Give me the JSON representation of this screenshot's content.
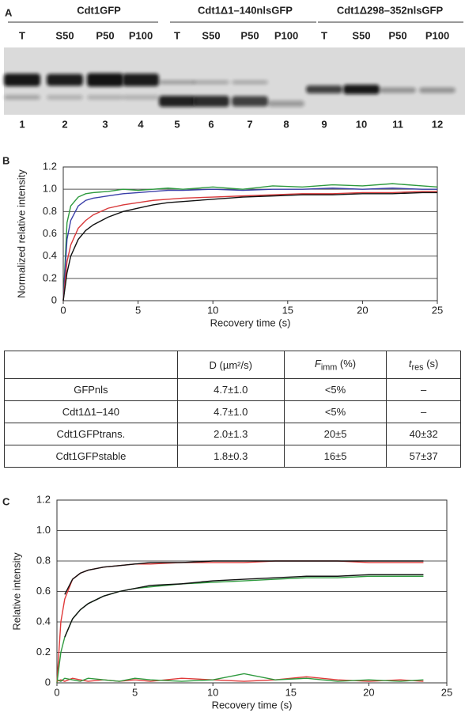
{
  "panel_a": {
    "label": "A",
    "groups": [
      {
        "name": "Cdt1GFP",
        "lanes": [
          "T",
          "S50",
          "P50",
          "P100"
        ]
      },
      {
        "name": "Cdt1Δ1–140nlsGFP",
        "lanes": [
          "T",
          "S50",
          "P50",
          "P100"
        ]
      },
      {
        "name": "Cdt1Δ298–352nlsGFP",
        "lanes": [
          "T",
          "S50",
          "P50",
          "P100"
        ]
      }
    ],
    "lane_numbers": [
      1,
      2,
      3,
      4,
      5,
      6,
      7,
      8,
      9,
      10,
      11,
      12
    ]
  },
  "chart_data": [
    {
      "type": "line",
      "label": "B",
      "x_label": "Recovery time (s)",
      "y_label": "Normalized relative intensity",
      "x": [
        0,
        0.25,
        0.5,
        1,
        1.5,
        2,
        3,
        4,
        5,
        6,
        7,
        8,
        10,
        12,
        14,
        16,
        18,
        20,
        22,
        24,
        25
      ],
      "series": [
        {
          "color": "#2e9a3e",
          "values": [
            0,
            0.7,
            0.85,
            0.93,
            0.96,
            0.97,
            0.98,
            1.0,
            0.99,
            1.0,
            1.01,
            1.0,
            1.02,
            1.0,
            1.03,
            1.02,
            1.04,
            1.03,
            1.05,
            1.03,
            1.02
          ]
        },
        {
          "color": "#3a3fa8",
          "values": [
            0,
            0.55,
            0.72,
            0.85,
            0.9,
            0.92,
            0.94,
            0.96,
            0.97,
            0.98,
            0.99,
            0.99,
            1.0,
            0.99,
            1.0,
            1.0,
            1.01,
            1.0,
            1.01,
            1.0,
            1.0
          ]
        },
        {
          "color": "#d8393a",
          "values": [
            0,
            0.35,
            0.5,
            0.65,
            0.72,
            0.77,
            0.83,
            0.86,
            0.88,
            0.9,
            0.91,
            0.92,
            0.93,
            0.94,
            0.95,
            0.96,
            0.96,
            0.97,
            0.97,
            0.98,
            0.98
          ]
        },
        {
          "color": "#111111",
          "values": [
            0,
            0.25,
            0.4,
            0.55,
            0.63,
            0.68,
            0.75,
            0.8,
            0.83,
            0.86,
            0.88,
            0.89,
            0.91,
            0.93,
            0.94,
            0.95,
            0.95,
            0.96,
            0.96,
            0.97,
            0.97
          ]
        }
      ],
      "xlim": [
        0,
        25
      ],
      "xticks": [
        0,
        5,
        10,
        15,
        20,
        25
      ],
      "ylim": [
        0,
        1.2
      ],
      "yticks": [
        0,
        0.2,
        0.4,
        0.6,
        0.8,
        {
          "value": 1,
          "label": "1.0"
        },
        1.2
      ],
      "grid": true
    },
    {
      "type": "line",
      "label": "C",
      "x_label": "Recovery time (s)",
      "y_label": "Relative intensity",
      "x": [
        0,
        0.25,
        0.5,
        1,
        1.5,
        2,
        3,
        4,
        5,
        6,
        8,
        10,
        12,
        14,
        16,
        18,
        20,
        22,
        23.5
      ],
      "series": [
        {
          "color": "#e03a3a",
          "values": [
            0,
            0.4,
            0.55,
            0.68,
            0.72,
            0.74,
            0.76,
            0.77,
            0.78,
            0.78,
            0.79,
            0.79,
            0.79,
            0.8,
            0.8,
            0.8,
            0.79,
            0.79,
            0.79
          ]
        },
        {
          "color": "#111111",
          "values": [
            null,
            null,
            0.58,
            0.68,
            0.72,
            0.74,
            0.76,
            0.77,
            0.78,
            0.79,
            0.79,
            0.8,
            0.8,
            0.8,
            0.8,
            0.8,
            0.8,
            0.8,
            0.8
          ]
        },
        {
          "color": "#2e9a3e",
          "values": [
            0,
            0.2,
            0.3,
            0.42,
            0.48,
            0.52,
            0.57,
            0.6,
            0.62,
            0.63,
            0.65,
            0.66,
            0.67,
            0.68,
            0.69,
            0.69,
            0.7,
            0.7,
            0.7
          ]
        },
        {
          "color": "#111111",
          "values": [
            null,
            null,
            0.3,
            0.42,
            0.48,
            0.52,
            0.57,
            0.6,
            0.62,
            0.64,
            0.65,
            0.67,
            0.68,
            0.69,
            0.7,
            0.7,
            0.71,
            0.71,
            0.71
          ]
        },
        {
          "color": "#e03a3a",
          "values": [
            0.01,
            0.02,
            0.01,
            0.03,
            0.02,
            0.01,
            0.02,
            0.01,
            0.02,
            0.01,
            0.03,
            0.02,
            0.01,
            0.02,
            0.04,
            0.02,
            0.01,
            0.02,
            0.01
          ]
        },
        {
          "color": "#2e9a3e",
          "values": [
            0.02,
            0.01,
            0.03,
            0.02,
            0.01,
            0.03,
            0.02,
            0.01,
            0.03,
            0.02,
            0.01,
            0.02,
            0.06,
            0.02,
            0.03,
            0.01,
            0.02,
            0.01,
            0.02
          ]
        }
      ],
      "xlim": [
        0,
        25
      ],
      "xticks": [
        0,
        5,
        10,
        15,
        20,
        25
      ],
      "ylim": [
        0,
        1.2
      ],
      "yticks": [
        0,
        0.2,
        0.4,
        0.6,
        0.8,
        {
          "value": 1,
          "label": "1.0"
        },
        1.2
      ],
      "grid": true
    }
  ],
  "table": {
    "columns": [
      {
        "symbol": "D",
        "unit": "(µm²/s)"
      },
      {
        "symbol": "F",
        "subscript": "imm",
        "unit": "(%)"
      },
      {
        "symbol": "t",
        "subscript": "res",
        "unit": "(s)"
      }
    ],
    "rows": [
      [
        "GFPnls",
        "4.7±1.0",
        "<5%",
        "–"
      ],
      [
        "Cdt1Δ1–140",
        "4.7±1.0",
        "<5%",
        "–"
      ],
      [
        "Cdt1GFPtrans.",
        "2.0±1.3",
        "20±5",
        "40±32"
      ],
      [
        "Cdt1GFPstable",
        "1.8±0.3",
        "16±5",
        "57±37"
      ]
    ]
  }
}
